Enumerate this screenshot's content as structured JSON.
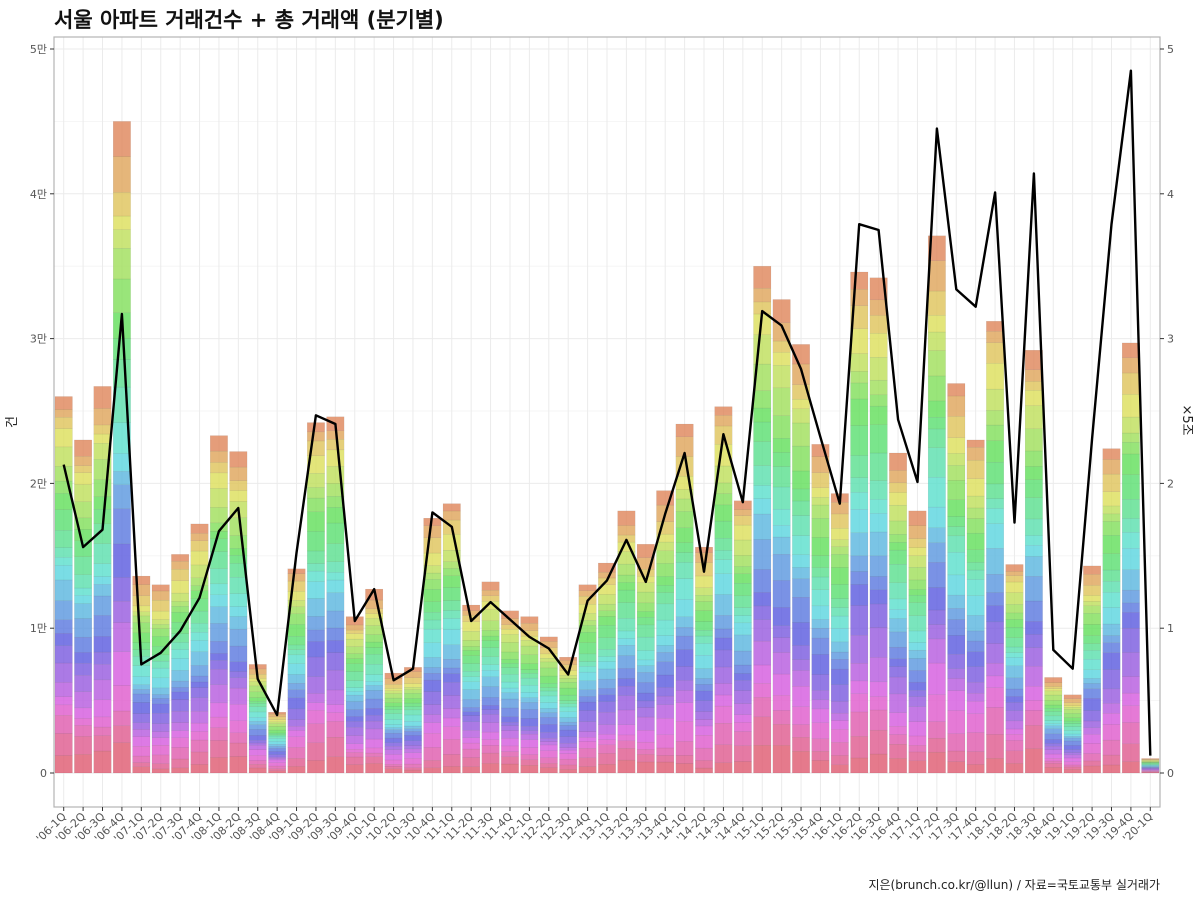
{
  "title": "서울 아파트 거래건수 + 총 거래액 (분기별)",
  "caption": "지은(brunch.co.kr/@llun) / 자료=국토교통부 실거래가",
  "chart_data": {
    "type": "bar",
    "subtype": "stacked bar + line (dual axis)",
    "categories": [
      "'06-1Q",
      "'06-2Q",
      "'06-3Q",
      "'06-4Q",
      "'07-1Q",
      "'07-2Q",
      "'07-3Q",
      "'07-4Q",
      "'08-1Q",
      "'08-2Q",
      "'08-3Q",
      "'08-4Q",
      "'09-1Q",
      "'09-2Q",
      "'09-3Q",
      "'09-4Q",
      "'10-1Q",
      "'10-2Q",
      "'10-3Q",
      "'10-4Q",
      "'11-1Q",
      "'11-2Q",
      "'11-3Q",
      "'11-4Q",
      "'12-1Q",
      "'12-2Q",
      "'12-3Q",
      "'12-4Q",
      "'13-1Q",
      "'13-2Q",
      "'13-3Q",
      "'13-4Q",
      "'14-1Q",
      "'14-2Q",
      "'14-3Q",
      "'14-4Q",
      "'15-1Q",
      "'15-2Q",
      "'15-3Q",
      "'15-4Q",
      "'16-1Q",
      "'16-2Q",
      "'16-3Q",
      "'16-4Q",
      "'17-1Q",
      "'17-2Q",
      "'17-3Q",
      "'17-4Q",
      "'18-1Q",
      "'18-2Q",
      "'18-3Q",
      "'18-4Q",
      "'19-1Q",
      "'19-2Q",
      "'19-3Q",
      "'19-4Q",
      "'20-1Q"
    ],
    "bar_totals": [
      26000,
      23000,
      26700,
      45000,
      13600,
      13000,
      15100,
      17200,
      23300,
      22200,
      7500,
      4200,
      14100,
      24200,
      24600,
      10800,
      12700,
      6900,
      7300,
      17600,
      18600,
      11600,
      13200,
      11200,
      10800,
      9400,
      8000,
      13000,
      14500,
      18100,
      15800,
      19500,
      24100,
      15600,
      25300,
      18800,
      35000,
      32700,
      29600,
      22700,
      19300,
      34600,
      34200,
      22100,
      18100,
      37100,
      26900,
      23000,
      31200,
      14400,
      29200,
      6600,
      5400,
      14300,
      22400,
      29700,
      1000
    ],
    "bar_segment_count": 25,
    "line": {
      "values": [
        2.13,
        1.56,
        1.68,
        3.17,
        0.75,
        0.83,
        0.98,
        1.21,
        1.67,
        1.83,
        0.65,
        0.4,
        1.52,
        2.47,
        2.41,
        1.05,
        1.27,
        0.64,
        0.72,
        1.8,
        1.7,
        1.05,
        1.18,
        1.06,
        0.94,
        0.86,
        0.68,
        1.19,
        1.33,
        1.61,
        1.32,
        1.79,
        2.21,
        1.39,
        2.34,
        1.87,
        3.19,
        3.09,
        2.79,
        2.32,
        1.86,
        3.79,
        3.75,
        2.44,
        2.01,
        4.45,
        3.34,
        3.22,
        4.01,
        1.73,
        4.14,
        0.85,
        0.72,
        2.31,
        3.79,
        4.85,
        0.12
      ],
      "color": "#000000"
    },
    "y_axis": {
      "label": "건",
      "ylim": [
        0,
        50000
      ],
      "ticks": [
        0,
        10000,
        20000,
        30000,
        40000,
        50000
      ],
      "tick_labels": [
        "0",
        "1만",
        "2만",
        "3만",
        "4만",
        "5만"
      ]
    },
    "y2_axis": {
      "label": "×5조",
      "ylim": [
        0,
        5
      ],
      "ticks": [
        0,
        1,
        2,
        3,
        4,
        5
      ],
      "tick_labels": [
        "0",
        "1",
        "2",
        "3",
        "4",
        "5"
      ]
    },
    "xlabel": "",
    "grid": true,
    "legend": "none",
    "colors": {
      "panel_border": "#b3b3b3",
      "grid": "#ebebeb",
      "line": "#000000"
    }
  }
}
